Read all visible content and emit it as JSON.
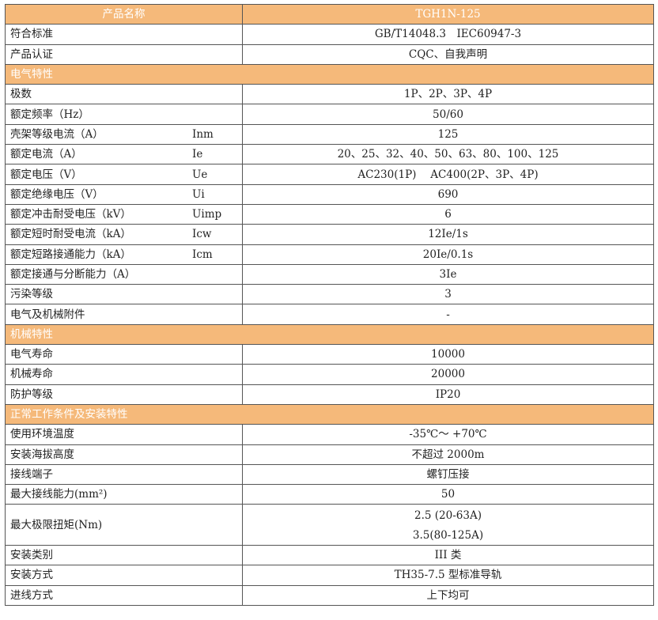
{
  "header": {
    "label": "产品名称",
    "value": "TGH1N-125"
  },
  "colors": {
    "header_bg": "#f5b97a",
    "header_text": "#ffffff",
    "border": "#555555"
  },
  "rows_top": [
    {
      "label": "符合标准",
      "value": "GB/T14048.3　IEC60947-3"
    },
    {
      "label": "产品认证",
      "value": "CQC、自我声明"
    }
  ],
  "section_electrical": "电气特性",
  "rows_electrical": [
    {
      "label": "极数",
      "symbol": "",
      "value": "1P、2P、3P、4P"
    },
    {
      "label": "额定频率（Hz）",
      "symbol": "",
      "value": "50/60"
    },
    {
      "label": "壳架等级电流（A）",
      "symbol": "Inm",
      "value": "125"
    },
    {
      "label": "额定电流（A）",
      "symbol": "Ie",
      "value": "20、25、32、40、50、63、80、100、125"
    },
    {
      "label": "额定电压（V）",
      "symbol": "Ue",
      "value": "AC230(1P)　 AC400(2P、3P、4P)"
    },
    {
      "label": "额定绝缘电压（V）",
      "symbol": "Ui",
      "value": "690"
    },
    {
      "label": "额定冲击耐受电压（kV）",
      "symbol": "Uimp",
      "value": "6"
    },
    {
      "label": "额定短时耐受电流（kA）",
      "symbol": "Icw",
      "value": "12Ie/1s"
    },
    {
      "label": "额定短路接通能力（kA）",
      "symbol": "Icm",
      "value": "20Ie/0.1s"
    },
    {
      "label": "额定接通与分断能力（A）",
      "symbol": "",
      "value": "3Ie"
    },
    {
      "label": "污染等级",
      "symbol": "",
      "value": "3"
    },
    {
      "label": "电气及机械附件",
      "symbol": "",
      "value": "-"
    }
  ],
  "section_mechanical": "机械特性",
  "rows_mechanical": [
    {
      "label": "电气寿命",
      "value": "10000"
    },
    {
      "label": "机械寿命",
      "value": "20000"
    },
    {
      "label": "防护等级",
      "value": "IP20"
    }
  ],
  "section_conditions": "正常工作条件及安装特性",
  "rows_conditions": [
    {
      "label": "使用环境温度",
      "value": "-35℃～ +70℃"
    },
    {
      "label": "安装海拔高度",
      "value": "不超过 2000m"
    },
    {
      "label": "接线端子",
      "value": "螺钉压接"
    },
    {
      "label": "最大接线能力(mm²)",
      "value": "50"
    }
  ],
  "torque": {
    "label": "最大极限扭矩(Nm)",
    "value_1": "2.5 (20-63A)",
    "value_2": "3.5(80-125A)"
  },
  "rows_bottom": [
    {
      "label": "安装类别",
      "value": "III 类"
    },
    {
      "label": "安装方式",
      "value": "TH35-7.5 型标准导轨"
    },
    {
      "label": "进线方式",
      "value": "上下均可"
    }
  ]
}
